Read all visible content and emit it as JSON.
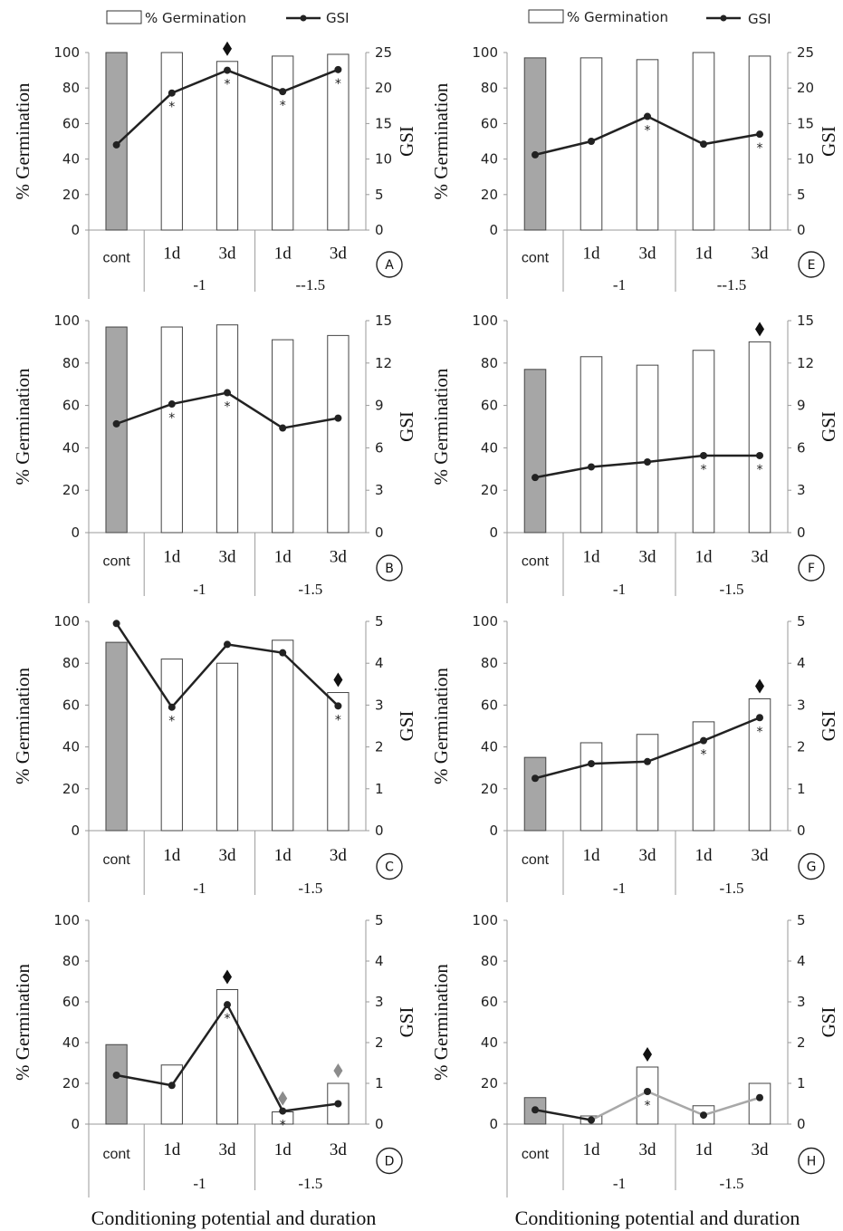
{
  "legend": {
    "germination_label": "% Germination",
    "gsi_label": "GSI"
  },
  "xlabel": "Conditioning potential and duration",
  "chart_data": [
    {
      "type": "bar+line",
      "panel": "A",
      "categories": [
        "cont",
        "1d",
        "3d",
        "1d",
        "3d"
      ],
      "groups": [
        "-1",
        "--1.5"
      ],
      "series": [
        {
          "name": "% Germination",
          "axis": "left",
          "values": [
            100,
            100,
            95,
            98,
            99
          ]
        },
        {
          "name": "GSI",
          "axis": "right",
          "values": [
            12,
            19.3,
            22.5,
            19.5,
            22.6
          ]
        }
      ],
      "ylabel_left": "% Germination",
      "ylabel_right": "GSI",
      "ylim_left": [
        0,
        100
      ],
      "ylim_right": [
        0,
        25
      ],
      "yticks_left": [
        0,
        20,
        40,
        60,
        80,
        100
      ],
      "yticks_right": [
        0,
        5,
        10,
        15,
        20,
        25
      ],
      "stars": [
        1,
        2,
        3,
        4
      ],
      "diamonds": [
        2
      ]
    },
    {
      "type": "bar+line",
      "panel": "B",
      "categories": [
        "cont",
        "1d",
        "3d",
        "1d",
        "3d"
      ],
      "groups": [
        "-1",
        "-1.5"
      ],
      "series": [
        {
          "name": "% Germination",
          "axis": "left",
          "values": [
            97,
            97,
            98,
            91,
            93
          ]
        },
        {
          "name": "GSI",
          "axis": "right",
          "values": [
            7.7,
            9.1,
            9.9,
            7.4,
            8.1
          ]
        }
      ],
      "ylabel_left": "% Germination",
      "ylabel_right": "GSI",
      "ylim_left": [
        0,
        100
      ],
      "ylim_right": [
        0,
        15
      ],
      "yticks_left": [
        0,
        20,
        40,
        60,
        80,
        100
      ],
      "yticks_right": [
        0,
        3,
        6,
        9,
        12,
        15
      ],
      "stars": [
        1,
        2
      ],
      "diamonds": []
    },
    {
      "type": "bar+line",
      "panel": "C",
      "categories": [
        "cont",
        "1d",
        "3d",
        "1d",
        "3d"
      ],
      "groups": [
        "-1",
        "-1.5"
      ],
      "series": [
        {
          "name": "% Germination",
          "axis": "left",
          "values": [
            90,
            82,
            80,
            91,
            66
          ]
        },
        {
          "name": "GSI",
          "axis": "right",
          "values": [
            4.95,
            2.95,
            4.45,
            4.25,
            2.98
          ]
        }
      ],
      "ylabel_left": "% Germination",
      "ylabel_right": "GSI",
      "ylim_left": [
        0,
        100
      ],
      "ylim_right": [
        0,
        5
      ],
      "yticks_left": [
        0,
        20,
        40,
        60,
        80,
        100
      ],
      "yticks_right": [
        0,
        1,
        2,
        3,
        4,
        5
      ],
      "stars": [
        1,
        4
      ],
      "diamonds": [
        4
      ]
    },
    {
      "type": "bar+line",
      "panel": "D",
      "categories": [
        "cont",
        "1d",
        "3d",
        "1d",
        "3d"
      ],
      "groups": [
        "-1",
        "-1.5"
      ],
      "series": [
        {
          "name": "% Germination",
          "axis": "left",
          "values": [
            39,
            29,
            66,
            6,
            20
          ]
        },
        {
          "name": "GSI",
          "axis": "right",
          "values": [
            1.2,
            0.95,
            2.93,
            0.32,
            0.5
          ]
        }
      ],
      "ylabel_left": "% Germination",
      "ylabel_right": "GSI",
      "ylim_left": [
        0,
        100
      ],
      "ylim_right": [
        0,
        5
      ],
      "yticks_left": [
        0,
        20,
        40,
        60,
        80,
        100
      ],
      "yticks_right": [
        0,
        1,
        2,
        3,
        4,
        5
      ],
      "stars": [
        2,
        3
      ],
      "diamonds": [
        2,
        3,
        4
      ]
    },
    {
      "type": "bar+line",
      "panel": "E",
      "categories": [
        "cont",
        "1d",
        "3d",
        "1d",
        "3d"
      ],
      "groups": [
        "-1",
        "--1.5"
      ],
      "series": [
        {
          "name": "% Germination",
          "axis": "left",
          "values": [
            97,
            97,
            96,
            100,
            98
          ]
        },
        {
          "name": "GSI",
          "axis": "right",
          "values": [
            10.6,
            12.5,
            16,
            12.1,
            13.5
          ]
        }
      ],
      "ylabel_left": "% Germination",
      "ylabel_right": "GSI",
      "ylim_left": [
        0,
        100
      ],
      "ylim_right": [
        0,
        25
      ],
      "yticks_left": [
        0,
        20,
        40,
        60,
        80,
        100
      ],
      "yticks_right": [
        0,
        5,
        10,
        15,
        20,
        25
      ],
      "stars": [
        2,
        4
      ],
      "diamonds": []
    },
    {
      "type": "bar+line",
      "panel": "F",
      "categories": [
        "cont",
        "1d",
        "3d",
        "1d",
        "3d"
      ],
      "groups": [
        "-1",
        "-1.5"
      ],
      "series": [
        {
          "name": "% Germination",
          "axis": "left",
          "values": [
            77,
            83,
            79,
            86,
            90
          ]
        },
        {
          "name": "GSI",
          "axis": "right",
          "values": [
            3.9,
            4.65,
            5,
            5.45,
            5.45
          ]
        }
      ],
      "ylabel_left": "% Germination",
      "ylabel_right": "GSI",
      "ylim_left": [
        0,
        100
      ],
      "ylim_right": [
        0,
        15
      ],
      "yticks_left": [
        0,
        20,
        40,
        60,
        80,
        100
      ],
      "yticks_right": [
        0,
        3,
        6,
        9,
        12,
        15
      ],
      "stars": [
        3,
        4
      ],
      "diamonds": [
        4
      ]
    },
    {
      "type": "bar+line",
      "panel": "G",
      "categories": [
        "cont",
        "1d",
        "3d",
        "1d",
        "3d"
      ],
      "groups": [
        "-1",
        "-1.5"
      ],
      "series": [
        {
          "name": "% Germination",
          "axis": "left",
          "values": [
            35,
            42,
            46,
            52,
            63
          ]
        },
        {
          "name": "GSI",
          "axis": "right",
          "values": [
            1.25,
            1.6,
            1.65,
            2.15,
            2.7
          ]
        }
      ],
      "ylabel_left": "% Germination",
      "ylabel_right": "GSI",
      "ylim_left": [
        0,
        100
      ],
      "ylim_right": [
        0,
        5
      ],
      "yticks_left": [
        0,
        20,
        40,
        60,
        80,
        100
      ],
      "yticks_right": [
        0,
        1,
        2,
        3,
        4,
        5
      ],
      "stars": [
        3,
        4
      ],
      "diamonds": [
        4
      ]
    },
    {
      "type": "bar+line",
      "panel": "H",
      "categories": [
        "cont",
        "1d",
        "3d",
        "1d",
        "3d"
      ],
      "groups": [
        "-1",
        "-1.5"
      ],
      "series": [
        {
          "name": "% Germination",
          "axis": "left",
          "values": [
            13,
            4,
            28,
            9,
            20
          ]
        },
        {
          "name": "GSI",
          "axis": "right",
          "values": [
            0.35,
            0.1,
            0.8,
            0.22,
            0.65
          ]
        }
      ],
      "ylabel_left": "% Germination",
      "ylabel_right": "GSI",
      "ylim_left": [
        0,
        100
      ],
      "ylim_right": [
        0,
        5
      ],
      "yticks_left": [
        0,
        20,
        40,
        60,
        80,
        100
      ],
      "yticks_right": [
        0,
        1,
        2,
        3,
        4,
        5
      ],
      "stars": [
        2
      ],
      "diamonds": [
        2
      ]
    }
  ],
  "colors": {
    "control_bar": "#a6a6a6",
    "treatment_bar": "#ffffff",
    "bar_stroke": "#444444",
    "gsi_line": "#222222",
    "gsi_line_light": "#a8a8a8",
    "diamond_dark": "#111111",
    "diamond_light": "#8c8c8c"
  }
}
